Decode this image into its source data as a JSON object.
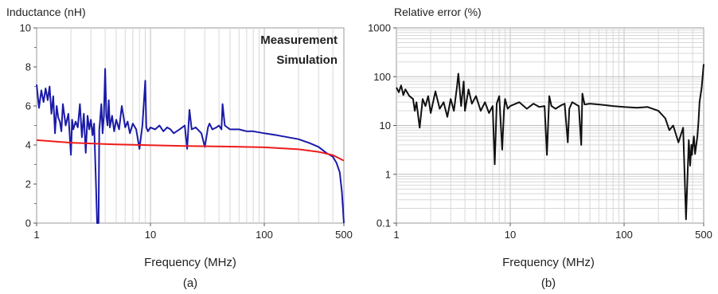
{
  "chart_data": [
    {
      "type": "line",
      "panel_caption": "(a)",
      "ylabel": "Inductance (nH)",
      "xlabel": "Frequency (MHz)",
      "xscale": "log",
      "xlim": [
        1,
        500
      ],
      "ylim": [
        0,
        10
      ],
      "xticks": [
        {
          "v": 1,
          "label": "1"
        },
        {
          "v": 10,
          "label": "10"
        },
        {
          "v": 100,
          "label": "100"
        },
        {
          "v": 500,
          "label": "500"
        }
      ],
      "yticks": [
        {
          "v": 0,
          "label": "0"
        },
        {
          "v": 2,
          "label": "2"
        },
        {
          "v": 4,
          "label": "4"
        },
        {
          "v": 6,
          "label": "6"
        },
        {
          "v": 8,
          "label": "8"
        },
        {
          "v": 10,
          "label": "10"
        }
      ],
      "grid": "vertical",
      "legend_position": "top-right",
      "series": [
        {
          "name": "Measurement",
          "color": "#1a1aa8",
          "x": [
            1,
            1.05,
            1.1,
            1.15,
            1.2,
            1.25,
            1.3,
            1.35,
            1.4,
            1.45,
            1.5,
            1.55,
            1.6,
            1.65,
            1.7,
            1.8,
            1.9,
            2.0,
            2.05,
            2.1,
            2.2,
            2.3,
            2.4,
            2.5,
            2.6,
            2.7,
            2.8,
            2.9,
            3.0,
            3.1,
            3.2,
            3.3,
            3.4,
            3.5,
            3.55,
            3.6,
            3.7,
            3.8,
            3.9,
            4.0,
            4.1,
            4.2,
            4.3,
            4.4,
            4.6,
            4.8,
            5.0,
            5.3,
            5.6,
            6.0,
            6.3,
            6.6,
            7.0,
            7.5,
            8.0,
            8.5,
            9.0,
            9.2,
            9.5,
            10,
            11,
            12,
            13,
            14,
            15,
            16,
            18,
            20,
            21,
            22,
            23,
            25,
            28,
            30,
            32,
            33,
            35,
            38,
            40,
            42,
            43,
            45,
            50,
            60,
            70,
            80,
            100,
            130,
            160,
            200,
            250,
            300,
            350,
            400,
            430,
            460,
            480,
            500
          ],
          "y": [
            7.1,
            5.9,
            6.8,
            6.2,
            6.9,
            6.3,
            7.0,
            5.6,
            6.5,
            4.6,
            6.0,
            5.4,
            5.2,
            4.7,
            6.1,
            5.0,
            5.6,
            3.5,
            5.3,
            4.8,
            5.2,
            4.9,
            6.1,
            4.4,
            5.6,
            3.6,
            5.5,
            4.8,
            5.3,
            4.5,
            5.1,
            2.5,
            0.0,
            0.0,
            4.8,
            5.2,
            6.1,
            4.6,
            5.5,
            7.9,
            5.5,
            5.0,
            6.3,
            4.9,
            5.5,
            4.7,
            5.3,
            4.8,
            6.0,
            4.9,
            5.2,
            4.6,
            5.1,
            4.8,
            3.8,
            5.0,
            7.3,
            4.9,
            4.7,
            4.9,
            4.8,
            5.0,
            4.7,
            4.9,
            4.8,
            4.6,
            4.8,
            5.0,
            3.8,
            5.8,
            4.8,
            4.9,
            4.6,
            3.9,
            4.9,
            5.1,
            4.8,
            4.9,
            5.0,
            4.8,
            6.1,
            5.0,
            4.8,
            4.8,
            4.7,
            4.7,
            4.6,
            4.5,
            4.4,
            4.3,
            4.1,
            3.9,
            3.6,
            3.4,
            3.1,
            2.6,
            1.6,
            0.0
          ]
        },
        {
          "name": "Simulation",
          "color": "#ee1c1c",
          "x": [
            1,
            2,
            5,
            10,
            20,
            50,
            100,
            200,
            300,
            400,
            500
          ],
          "y": [
            4.25,
            4.12,
            4.03,
            3.99,
            3.95,
            3.92,
            3.88,
            3.78,
            3.65,
            3.48,
            3.2
          ]
        }
      ]
    },
    {
      "type": "line",
      "panel_caption": "(b)",
      "ylabel": "Relative error (%)",
      "xlabel": "Frequency (MHz)",
      "xscale": "log",
      "yscale": "log",
      "xlim": [
        1,
        500
      ],
      "ylim": [
        0.1,
        1000
      ],
      "xticks": [
        {
          "v": 1,
          "label": "1"
        },
        {
          "v": 10,
          "label": "10"
        },
        {
          "v": 100,
          "label": "100"
        },
        {
          "v": 500,
          "label": "500"
        }
      ],
      "yticks": [
        {
          "v": 0.1,
          "label": "0.1"
        },
        {
          "v": 1,
          "label": "1"
        },
        {
          "v": 10,
          "label": "10"
        },
        {
          "v": 100,
          "label": "100"
        },
        {
          "v": 1000,
          "label": "1000"
        }
      ],
      "grid": "both",
      "series": [
        {
          "color": "#111111",
          "x": [
            1,
            1.05,
            1.1,
            1.15,
            1.2,
            1.3,
            1.4,
            1.45,
            1.5,
            1.6,
            1.7,
            1.8,
            1.9,
            2.0,
            2.2,
            2.4,
            2.6,
            2.8,
            3.0,
            3.2,
            3.4,
            3.5,
            3.7,
            3.9,
            4.0,
            4.3,
            4.6,
            5.0,
            5.5,
            6.0,
            6.5,
            7.0,
            7.3,
            7.6,
            8.0,
            8.5,
            8.8,
            9.0,
            9.5,
            10,
            12,
            14,
            16,
            18,
            20,
            21,
            22,
            23,
            25,
            28,
            30,
            32,
            33,
            35,
            40,
            42,
            43,
            45,
            50,
            60,
            80,
            100,
            130,
            160,
            200,
            230,
            250,
            270,
            300,
            330,
            350,
            370,
            380,
            390,
            395,
            400,
            410,
            420,
            440,
            450,
            460,
            480,
            500
          ],
          "y": [
            60,
            48,
            66,
            42,
            55,
            40,
            35,
            20,
            30,
            9,
            35,
            25,
            40,
            18,
            50,
            22,
            30,
            15,
            35,
            20,
            60,
            115,
            25,
            80,
            20,
            55,
            28,
            40,
            20,
            30,
            18,
            25,
            1.6,
            28,
            40,
            3.2,
            20,
            35,
            22,
            25,
            30,
            22,
            28,
            24,
            25,
            2.5,
            40,
            25,
            22,
            26,
            28,
            4.5,
            22,
            30,
            25,
            4.0,
            45,
            27,
            28,
            27,
            25,
            24,
            23,
            24,
            20,
            14,
            8,
            10,
            4.5,
            9,
            0.12,
            5,
            1.5,
            4,
            2.5,
            3.5,
            6,
            2.6,
            6,
            12,
            30,
            60,
            180
          ]
        }
      ]
    }
  ]
}
